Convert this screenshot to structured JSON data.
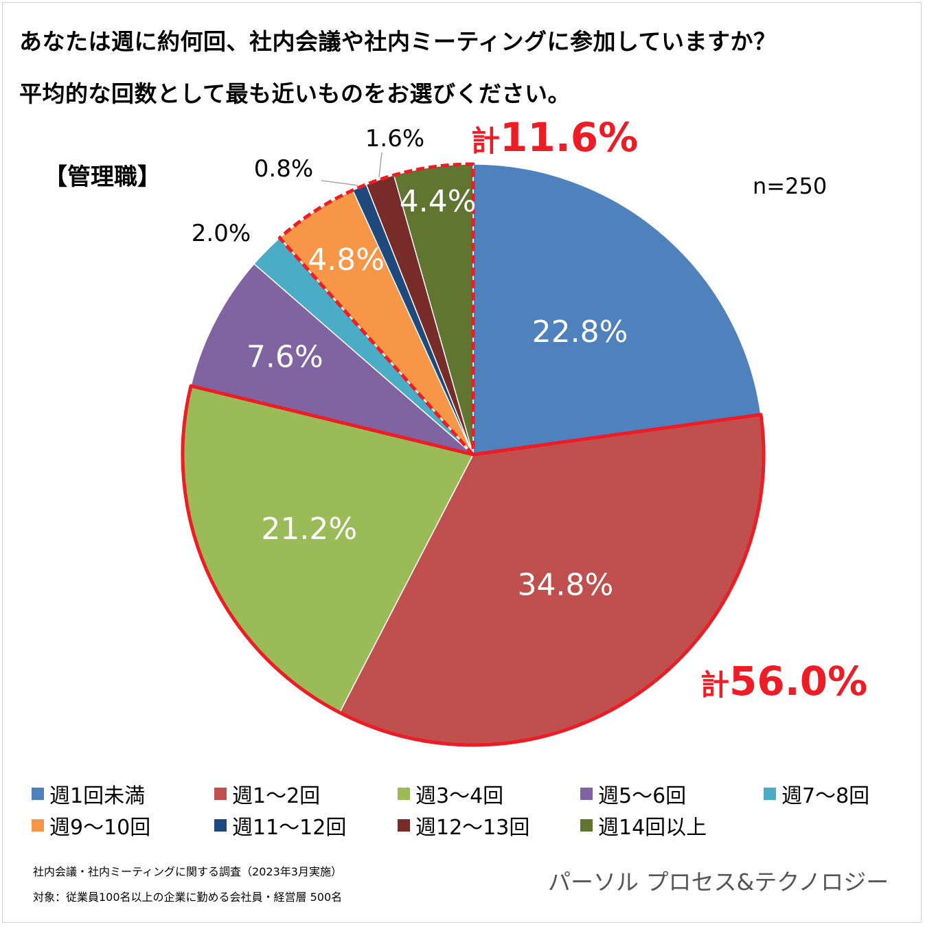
{
  "header": {
    "title_line1": "あなたは週に約何回、社内会議や社内ミーティングに参加していますか？",
    "title_line2": "平均的な回数として最も近いものをお選びください。"
  },
  "group_label": "【管理職】",
  "sample_size": "n=250",
  "totals": {
    "upper": {
      "prefix": "計",
      "value": "11.6%"
    },
    "lower": {
      "prefix": "計",
      "value": "56.0%"
    }
  },
  "chart_data": {
    "type": "pie",
    "unit": "%",
    "slices": [
      {
        "name": "週1回未満",
        "value": 22.8,
        "label": "22.8%",
        "color": "#4f81bd"
      },
      {
        "name": "週1～2回",
        "value": 34.8,
        "label": "34.8%",
        "color": "#c0504d"
      },
      {
        "name": "週3～4回",
        "value": 21.2,
        "label": "21.2%",
        "color": "#9bbb59"
      },
      {
        "name": "週5～6回",
        "value": 7.6,
        "label": "7.6%",
        "color": "#8064a2"
      },
      {
        "name": "週7～8回",
        "value": 2.0,
        "label": "2.0%",
        "color": "#4bacc6"
      },
      {
        "name": "週9～10回",
        "value": 4.8,
        "label": "4.8%",
        "color": "#f79646"
      },
      {
        "name": "週11～12回",
        "value": 0.8,
        "label": "0.8%",
        "color": "#1f497d"
      },
      {
        "name": "週12～13回",
        "value": 1.6,
        "label": "1.6%",
        "color": "#772c2a"
      },
      {
        "name": "週14回以上",
        "value": 4.4,
        "label": "4.4%",
        "color": "#5f7530"
      }
    ],
    "highlight_groups": [
      {
        "slices": [
          "週1～2回",
          "週3～4回"
        ],
        "total": "56.0%",
        "border": "solid",
        "color": "#ee1c25"
      },
      {
        "slices": [
          "週9～10回",
          "週11～12回",
          "週12～13回",
          "週14回以上"
        ],
        "total": "11.6%",
        "border": "dashed",
        "color": "#ee1c25"
      }
    ],
    "legend_position": "bottom"
  },
  "footer": {
    "note1": "社内会議・社内ミーティングに関する調査（2023年3月実施）",
    "note2": "対象：従業員100名以上の企業に勤める会社員・経営層 500名",
    "company": "パーソル プロセス&テクノロジー"
  }
}
